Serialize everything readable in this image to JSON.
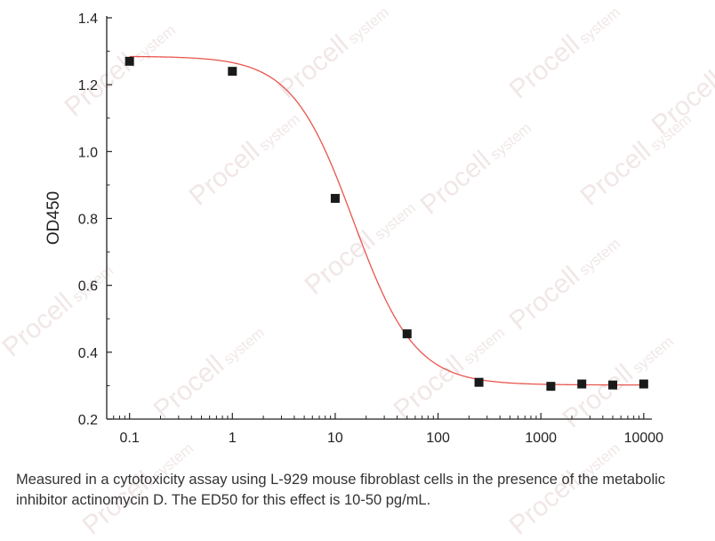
{
  "watermark": {
    "brand": "Procell",
    "suffix": "system"
  },
  "caption": "Measured in a cytotoxicity assay using L-929 mouse fibroblast cells in the presence of the metabolic inhibitor actinomycin D. The ED50 for this effect is 10-50 pg/mL.",
  "chart_data": {
    "type": "scatter",
    "title": "",
    "xlabel": "",
    "ylabel": "OD450",
    "xscale": "log",
    "xlim": [
      0.06,
      12000
    ],
    "ylim": [
      0.2,
      1.4
    ],
    "x_ticks": [
      0.1,
      1,
      10,
      100,
      1000,
      10000
    ],
    "x_tick_labels": [
      "0.1",
      "1",
      "10",
      "100",
      "1000",
      "10000"
    ],
    "y_ticks": [
      0.2,
      0.4,
      0.6,
      0.8,
      1.0,
      1.2,
      1.4
    ],
    "y_tick_labels": [
      "0.2",
      "0.4",
      "0.6",
      "0.8",
      "1.0",
      "1.2",
      "1.4"
    ],
    "grid": false,
    "legend": "none",
    "series": [
      {
        "x": [
          0.1,
          1,
          10,
          50,
          250,
          1250,
          2500,
          5000,
          10000
        ],
        "y": [
          1.27,
          1.24,
          0.86,
          0.455,
          0.31,
          0.298,
          0.305,
          0.302,
          0.305
        ],
        "marker": "square",
        "color": "#1a1a1a"
      }
    ],
    "fit_curve": {
      "model": "4PL",
      "top": 1.285,
      "bottom": 0.302,
      "ec50": 15,
      "hill": 1.45,
      "color": "#e8554e"
    }
  }
}
